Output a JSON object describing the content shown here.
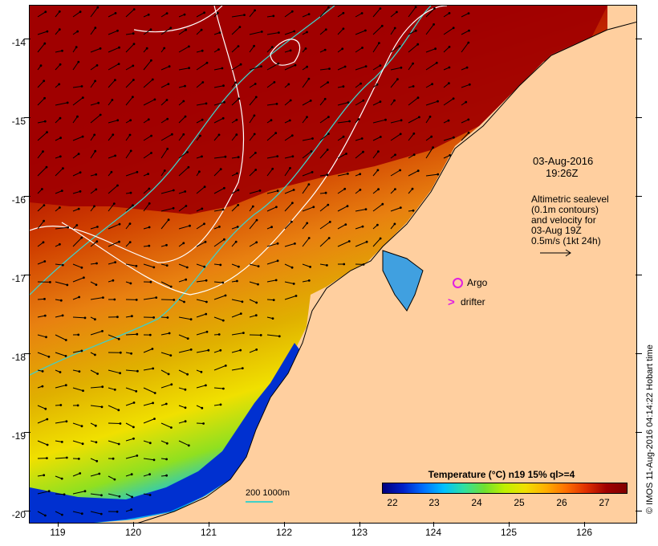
{
  "map": {
    "lat_ticks": [
      "-14",
      "-15",
      "-16",
      "-17",
      "-18",
      "-19",
      "-20"
    ],
    "lon_ticks": [
      "119",
      "120",
      "121",
      "122",
      "123",
      "124",
      "125",
      "126"
    ]
  },
  "annotations": {
    "date": "03-Aug-2016",
    "time": "19:26Z",
    "altimetry_line1": "Altimetric sealevel",
    "altimetry_line2": "(0.1m contours)",
    "altimetry_line3": "and velocity for",
    "altimetry_line4": "03-Aug 19Z",
    "velocity_scale": "0.5m/s (1kt 24h)",
    "argo_label": "Argo",
    "drifter_label": "drifter",
    "contour_label": "200  1000m"
  },
  "colorbar": {
    "title": "Temperature (°C) n19 15% ql>=4",
    "labels": [
      "22",
      "23",
      "24",
      "25",
      "26",
      "27"
    ]
  },
  "credit": "© IMOS 11-Aug-2016 04:14:22 Hobart time",
  "colors": {
    "land": "#ffcf9f",
    "warm_sst": "#a00000",
    "cool_sst": "#0020c8",
    "contour_isobath": "#40d0c8",
    "sealevel_contour": "#ffffff",
    "markers": "#e020e0"
  }
}
